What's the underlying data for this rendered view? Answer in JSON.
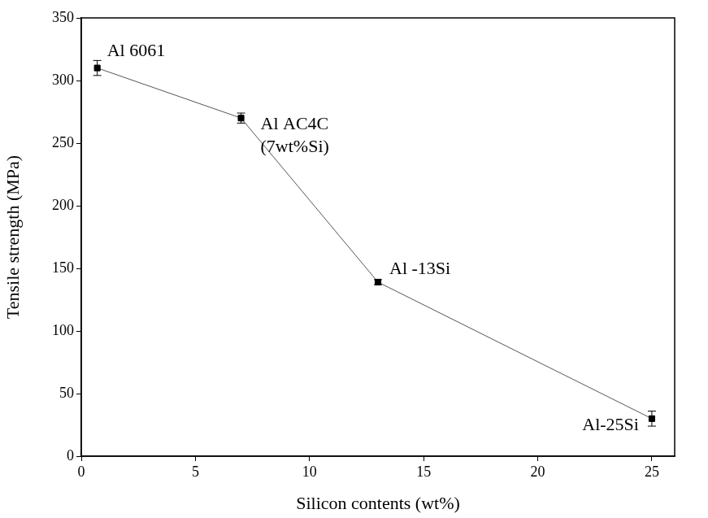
{
  "chart_data": {
    "type": "line",
    "x_label": "Silicon contents (wt%)",
    "y_label": "Tensile strength (MPa)",
    "x": [
      0.7,
      7,
      13,
      25
    ],
    "values": [
      310,
      270,
      139,
      30
    ],
    "errors": [
      6,
      4,
      2,
      6
    ],
    "point_labels": [
      [
        "Al 6061"
      ],
      [
        "Al AC4C",
        "(7wt%Si)"
      ],
      [
        "Al -13Si"
      ],
      [
        "Al-25Si"
      ]
    ],
    "xlim": [
      0,
      26
    ],
    "xticks": [
      0,
      5,
      10,
      15,
      20,
      25
    ],
    "ylim": [
      0,
      350
    ],
    "yticks": [
      0,
      50,
      100,
      150,
      200,
      250,
      300,
      350
    ],
    "color": "#000000",
    "marker": "square",
    "line_style": "solid",
    "grid": false
  }
}
